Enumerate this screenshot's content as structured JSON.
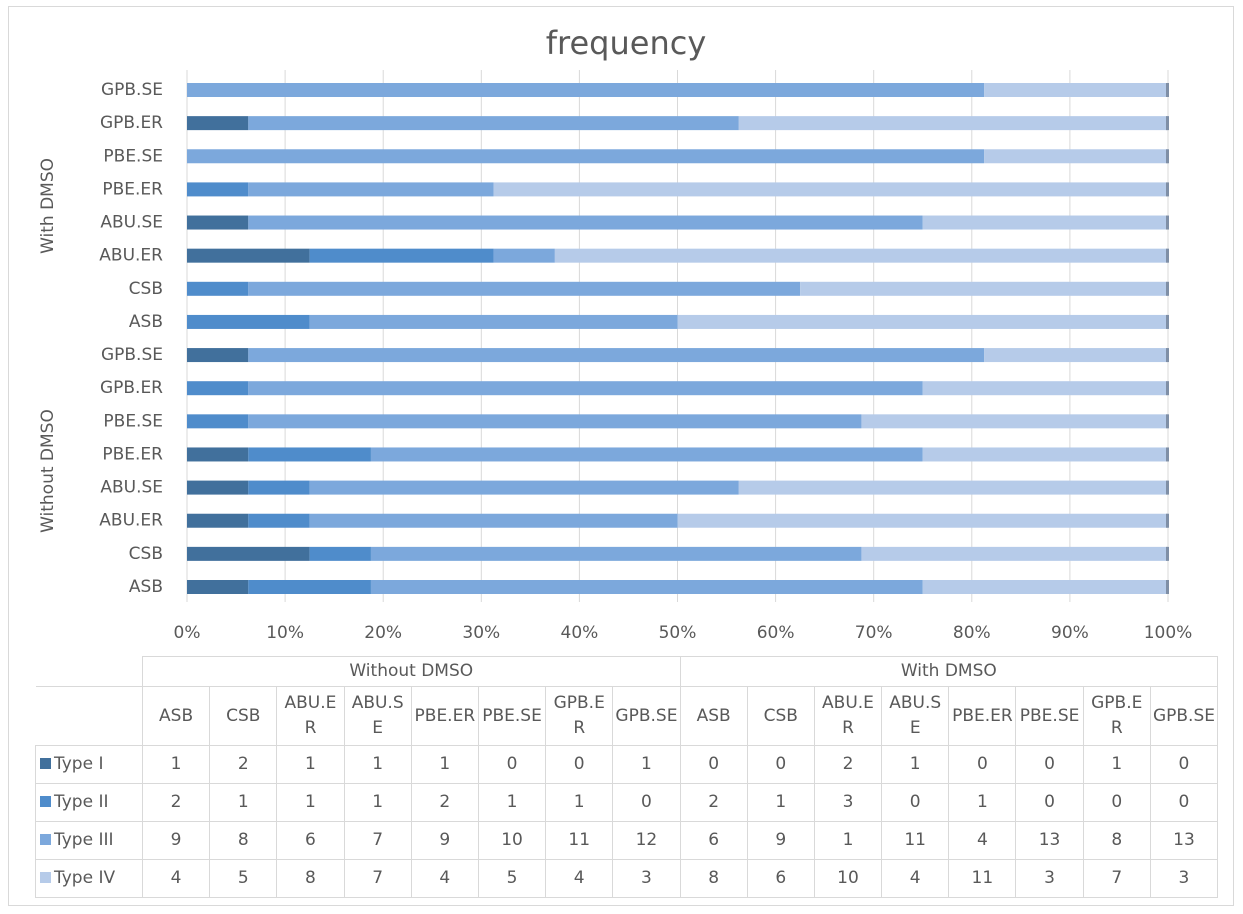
{
  "chart_data": {
    "type": "bar",
    "orientation": "horizontal",
    "stacked": "percent",
    "title": "frequency",
    "groups": [
      {
        "name": "Without DMSO",
        "categories": [
          "ASB",
          "CSB",
          "ABU.ER",
          "ABU.SE",
          "PBE.ER",
          "PBE.SE",
          "GPB.ER",
          "GPB.SE"
        ]
      },
      {
        "name": "With DMSO",
        "categories": [
          "ASB",
          "CSB",
          "ABU.ER",
          "ABU.SE",
          "PBE.ER",
          "PBE.SE",
          "GPB.ER",
          "GPB.SE"
        ]
      }
    ],
    "series": [
      {
        "name": "Type I",
        "color": "#41709c",
        "values": [
          1,
          2,
          1,
          1,
          1,
          0,
          0,
          1,
          0,
          0,
          2,
          1,
          0,
          0,
          1,
          0
        ]
      },
      {
        "name": "Type II",
        "color": "#4f8ccb",
        "values": [
          2,
          1,
          1,
          1,
          2,
          1,
          1,
          0,
          2,
          1,
          3,
          0,
          1,
          0,
          0,
          0
        ]
      },
      {
        "name": "Type III",
        "color": "#7ca8dc",
        "values": [
          9,
          8,
          6,
          7,
          9,
          10,
          11,
          12,
          6,
          9,
          1,
          11,
          4,
          13,
          8,
          13
        ]
      },
      {
        "name": "Type IV",
        "color": "#b6cbe9",
        "values": [
          4,
          5,
          8,
          7,
          4,
          5,
          4,
          3,
          8,
          6,
          10,
          4,
          11,
          3,
          7,
          3
        ]
      }
    ],
    "xlim": [
      0,
      100
    ],
    "xticks": [
      {
        "value": 0,
        "label": "0%"
      },
      {
        "value": 10,
        "label": "10%"
      },
      {
        "value": 20,
        "label": "20%"
      },
      {
        "value": 30,
        "label": "30%"
      },
      {
        "value": 40,
        "label": "40%"
      },
      {
        "value": 50,
        "label": "50%"
      },
      {
        "value": 60,
        "label": "60%"
      },
      {
        "value": 70,
        "label": "70%"
      },
      {
        "value": 80,
        "label": "80%"
      },
      {
        "value": 90,
        "label": "90%"
      },
      {
        "value": 100,
        "label": "100%"
      }
    ],
    "grid": true,
    "data_table": true
  }
}
